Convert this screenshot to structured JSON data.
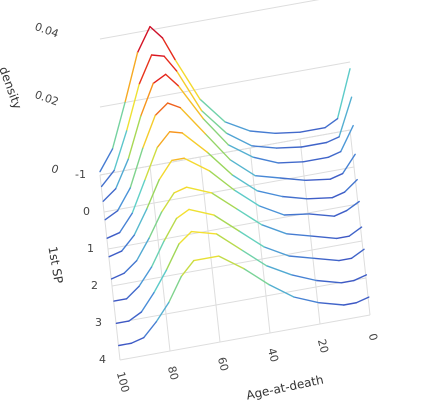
{
  "chart_data": {
    "type": "line3d",
    "xaxis_title": "Age-at-death",
    "yaxis_title": "1st SP",
    "zaxis_title": "density",
    "x": [
      0,
      5,
      10,
      20,
      30,
      40,
      50,
      60,
      70,
      75,
      80,
      85,
      90,
      95,
      100
    ],
    "xlim": [
      0,
      100
    ],
    "xticks": [
      0,
      20,
      40,
      60,
      80,
      100
    ],
    "ylim": [
      -1,
      4
    ],
    "yticks": [
      -1,
      0,
      1,
      2,
      3,
      4
    ],
    "zlim": [
      0,
      0.04
    ],
    "zticks": [
      0,
      0.02,
      0.04
    ],
    "colorscale": [
      "#3b4cc0",
      "#4a90d9",
      "#5fd0c8",
      "#9bd65a",
      "#f4e230",
      "#f7941d",
      "#e31a1c",
      "#c8102e"
    ],
    "series": [
      {
        "sp": -1.0,
        "values": [
          0.018,
          0.004,
          0.002,
          0.002,
          0.003,
          0.005,
          0.009,
          0.017,
          0.03,
          0.037,
          0.041,
          0.034,
          0.02,
          0.007,
          0.001
        ]
      },
      {
        "sp": -0.6,
        "values": [
          0.014,
          0.003,
          0.002,
          0.002,
          0.003,
          0.005,
          0.01,
          0.018,
          0.031,
          0.036,
          0.037,
          0.029,
          0.016,
          0.005,
          0.001
        ]
      },
      {
        "sp": -0.2,
        "values": [
          0.01,
          0.003,
          0.002,
          0.002,
          0.003,
          0.006,
          0.011,
          0.02,
          0.031,
          0.035,
          0.033,
          0.024,
          0.012,
          0.004,
          0.001
        ]
      },
      {
        "sp": 0.3,
        "values": [
          0.007,
          0.002,
          0.001,
          0.002,
          0.004,
          0.006,
          0.012,
          0.021,
          0.03,
          0.032,
          0.029,
          0.02,
          0.009,
          0.003,
          0.001
        ]
      },
      {
        "sp": 0.8,
        "values": [
          0.005,
          0.002,
          0.001,
          0.002,
          0.004,
          0.007,
          0.013,
          0.021,
          0.028,
          0.029,
          0.025,
          0.016,
          0.007,
          0.002,
          0.001
        ]
      },
      {
        "sp": 1.3,
        "values": [
          0.004,
          0.002,
          0.001,
          0.003,
          0.004,
          0.008,
          0.014,
          0.021,
          0.026,
          0.026,
          0.021,
          0.013,
          0.006,
          0.002,
          0.001
        ]
      },
      {
        "sp": 1.9,
        "values": [
          0.003,
          0.001,
          0.001,
          0.003,
          0.005,
          0.009,
          0.015,
          0.021,
          0.024,
          0.023,
          0.018,
          0.011,
          0.005,
          0.002,
          0.001
        ]
      },
      {
        "sp": 2.5,
        "values": [
          0.003,
          0.001,
          0.001,
          0.003,
          0.005,
          0.009,
          0.015,
          0.021,
          0.024,
          0.022,
          0.016,
          0.009,
          0.004,
          0.001,
          0.001
        ]
      },
      {
        "sp": 3.1,
        "values": [
          0.002,
          0.001,
          0.001,
          0.003,
          0.006,
          0.01,
          0.016,
          0.022,
          0.024,
          0.021,
          0.014,
          0.008,
          0.003,
          0.001,
          0.001
        ]
      },
      {
        "sp": 3.7,
        "values": [
          0.002,
          0.001,
          0.001,
          0.003,
          0.006,
          0.011,
          0.017,
          0.022,
          0.022,
          0.018,
          0.011,
          0.006,
          0.002,
          0.001,
          0.001
        ]
      }
    ]
  }
}
